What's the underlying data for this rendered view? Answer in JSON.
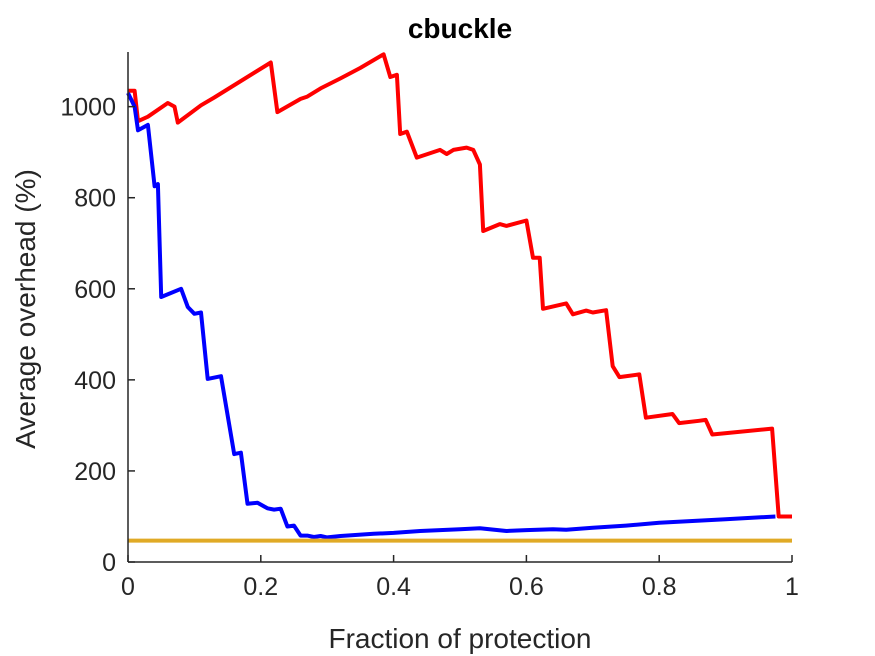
{
  "chart_data": {
    "type": "line",
    "title": "cbuckle",
    "xlabel": "Fraction of protection",
    "ylabel": "Average overhead (%)",
    "xlim": [
      0,
      1
    ],
    "ylim": [
      0,
      1120
    ],
    "xticks": [
      "0",
      "0.2",
      "0.4",
      "0.6",
      "0.8",
      "1"
    ],
    "yticks": [
      "0",
      "200",
      "400",
      "600",
      "800",
      "1000"
    ],
    "grid": false,
    "series": [
      {
        "color": "#ff0000",
        "points": [
          [
            0.0,
            1035
          ],
          [
            0.01,
            1035
          ],
          [
            0.015,
            968
          ],
          [
            0.03,
            978
          ],
          [
            0.06,
            1008
          ],
          [
            0.07,
            1000
          ],
          [
            0.075,
            965
          ],
          [
            0.11,
            1003
          ],
          [
            0.13,
            1020
          ],
          [
            0.215,
            1097
          ],
          [
            0.225,
            988
          ],
          [
            0.26,
            1017
          ],
          [
            0.27,
            1022
          ],
          [
            0.29,
            1040
          ],
          [
            0.32,
            1062
          ],
          [
            0.35,
            1085
          ],
          [
            0.385,
            1115
          ],
          [
            0.395,
            1065
          ],
          [
            0.405,
            1070
          ],
          [
            0.41,
            940
          ],
          [
            0.42,
            945
          ],
          [
            0.435,
            888
          ],
          [
            0.47,
            905
          ],
          [
            0.48,
            896
          ],
          [
            0.49,
            905
          ],
          [
            0.51,
            910
          ],
          [
            0.52,
            905
          ],
          [
            0.53,
            873
          ],
          [
            0.535,
            727
          ],
          [
            0.56,
            742
          ],
          [
            0.57,
            738
          ],
          [
            0.6,
            750
          ],
          [
            0.61,
            668
          ],
          [
            0.62,
            668
          ],
          [
            0.625,
            556
          ],
          [
            0.66,
            568
          ],
          [
            0.67,
            544
          ],
          [
            0.69,
            552
          ],
          [
            0.7,
            548
          ],
          [
            0.72,
            553
          ],
          [
            0.73,
            430
          ],
          [
            0.74,
            406
          ],
          [
            0.77,
            412
          ],
          [
            0.78,
            317
          ],
          [
            0.82,
            325
          ],
          [
            0.83,
            305
          ],
          [
            0.86,
            310
          ],
          [
            0.87,
            312
          ],
          [
            0.88,
            280
          ],
          [
            0.97,
            293
          ],
          [
            0.98,
            100
          ],
          [
            1.0,
            100
          ]
        ]
      },
      {
        "color": "#0000ff",
        "points": [
          [
            0.0,
            1030
          ],
          [
            0.01,
            1000
          ],
          [
            0.015,
            948
          ],
          [
            0.03,
            960
          ],
          [
            0.04,
            825
          ],
          [
            0.045,
            830
          ],
          [
            0.05,
            582
          ],
          [
            0.08,
            600
          ],
          [
            0.09,
            560
          ],
          [
            0.1,
            545
          ],
          [
            0.11,
            548
          ],
          [
            0.12,
            402
          ],
          [
            0.14,
            408
          ],
          [
            0.16,
            237
          ],
          [
            0.17,
            240
          ],
          [
            0.18,
            128
          ],
          [
            0.195,
            130
          ],
          [
            0.21,
            118
          ],
          [
            0.22,
            115
          ],
          [
            0.23,
            117
          ],
          [
            0.24,
            78
          ],
          [
            0.25,
            80
          ],
          [
            0.26,
            58
          ],
          [
            0.27,
            58
          ],
          [
            0.28,
            55
          ],
          [
            0.29,
            57
          ],
          [
            0.3,
            54
          ],
          [
            0.32,
            57
          ],
          [
            0.37,
            62
          ],
          [
            0.4,
            64
          ],
          [
            0.44,
            68
          ],
          [
            0.5,
            72
          ],
          [
            0.53,
            74
          ],
          [
            0.57,
            68
          ],
          [
            0.6,
            70
          ],
          [
            0.64,
            72
          ],
          [
            0.66,
            71
          ],
          [
            0.7,
            75
          ],
          [
            0.75,
            80
          ],
          [
            0.8,
            86
          ],
          [
            0.85,
            90
          ],
          [
            0.9,
            94
          ],
          [
            0.95,
            98
          ],
          [
            0.975,
            100
          ]
        ]
      },
      {
        "color": "#e0aa26",
        "points": [
          [
            0.0,
            47
          ],
          [
            1.0,
            47
          ]
        ]
      }
    ]
  }
}
